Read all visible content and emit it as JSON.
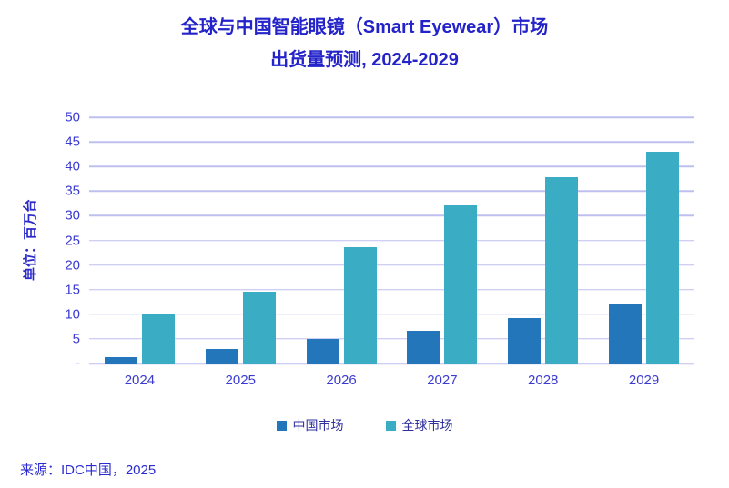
{
  "title": {
    "line1": "全球与中国智能眼镜（Smart Eyewear）市场",
    "line2": "出货量预测, 2024-2029"
  },
  "source": "来源：IDC中国，2025",
  "colors": {
    "china_bar": "#2376B9",
    "global_bar": "#3AADC4",
    "title_text": "#2323C9",
    "axis_text": "#3B3BD2",
    "legend_text": "#31319E",
    "gridline": "#BFBFEF"
  },
  "legend": {
    "items": [
      {
        "label": "中国市场",
        "color": "#2376B9"
      },
      {
        "label": "全球市场",
        "color": "#3AADC4"
      }
    ]
  },
  "chart_data": {
    "type": "bar",
    "title": "全球与中国智能眼镜（Smart Eyewear）市场 出货量预测, 2024-2029",
    "ylabel": "单位：百万台",
    "xlabel": "",
    "categories": [
      "2024",
      "2025",
      "2026",
      "2027",
      "2028",
      "2029"
    ],
    "series": [
      {
        "name": "中国市场",
        "color": "#2376B9",
        "values": [
          1.3,
          2.9,
          5.0,
          6.7,
          9.3,
          12.0
        ]
      },
      {
        "name": "全球市场",
        "color": "#3AADC4",
        "values": [
          10.2,
          14.5,
          23.7,
          32.1,
          37.9,
          42.9
        ]
      }
    ],
    "ylim": [
      0,
      50
    ],
    "ytick_step": 5,
    "ytick_labels_bottom_to_top": [
      "-",
      "5",
      "10",
      "15",
      "20",
      "25",
      "30",
      "35",
      "40",
      "45",
      "50"
    ],
    "grid": true,
    "legend_position": "bottom"
  }
}
